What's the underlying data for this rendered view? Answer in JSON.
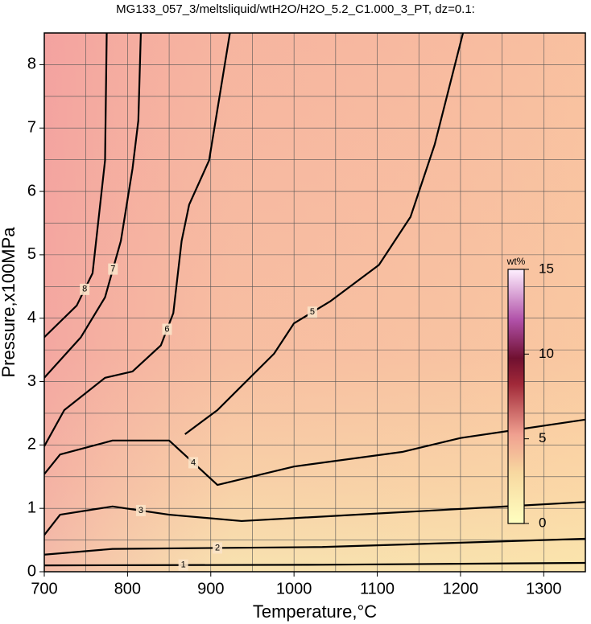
{
  "chart_data": {
    "type": "contour",
    "title": "MG133_057_3/meltsliquid/wtH2O/H2O_5.2_C1.000_3_PT, dz=0.1:",
    "x_label": "Temperature,°C",
    "y_label": "Pressure,x100MPa",
    "xlim": [
      700,
      1350
    ],
    "ylim": [
      0,
      8.5
    ],
    "xticks": [
      700,
      800,
      900,
      1000,
      1100,
      1200,
      1300
    ],
    "yticks": [
      0,
      1,
      2,
      3,
      4,
      5,
      6,
      7,
      8
    ],
    "xgrid": [
      750,
      850,
      950,
      1050,
      1150,
      1250
    ],
    "ygrid": [
      0.5,
      1.5,
      2.5,
      3.5,
      4.5,
      5.5,
      6.5,
      7.5
    ],
    "grid": true,
    "series": [
      {
        "name": "1",
        "color": "#000000",
        "x": [
          700,
          1034,
          1350
        ],
        "y": [
          0.1,
          0.11,
          0.14
        ]
      },
      {
        "name": "2",
        "color": "#000000",
        "x": [
          700,
          782,
          1034,
          1350
        ],
        "y": [
          0.27,
          0.36,
          0.39,
          0.52
        ]
      },
      {
        "name": "3",
        "color": "#000000",
        "x": [
          700,
          719,
          782,
          850,
          937,
          1130,
          1350
        ],
        "y": [
          0.58,
          0.9,
          1.03,
          0.9,
          0.8,
          0.94,
          1.1
        ]
      },
      {
        "name": "4",
        "color": "#000000",
        "x": [
          700,
          719,
          782,
          850,
          908,
          1000,
          1130,
          1200,
          1350
        ],
        "y": [
          1.54,
          1.85,
          2.07,
          2.07,
          1.37,
          1.66,
          1.89,
          2.11,
          2.4
        ]
      },
      {
        "name": "5",
        "color": "#000000",
        "x": [
          869,
          908,
          937,
          976,
          1000,
          1044,
          1102,
          1140,
          1169,
          1203
        ],
        "y": [
          2.17,
          2.55,
          2.93,
          3.44,
          3.92,
          4.27,
          4.84,
          5.6,
          6.74,
          8.5
        ]
      },
      {
        "name": "6",
        "color": "#000000",
        "x": [
          700,
          724,
          773,
          806,
          840,
          855,
          865,
          874,
          898,
          923
        ],
        "y": [
          1.98,
          2.55,
          3.06,
          3.16,
          3.57,
          4.08,
          5.22,
          5.79,
          6.49,
          8.5
        ]
      },
      {
        "name": "7",
        "color": "#000000",
        "x": [
          700,
          744,
          773,
          792,
          806,
          813,
          816
        ],
        "y": [
          3.06,
          3.7,
          4.33,
          5.22,
          6.36,
          7.12,
          8.5
        ]
      },
      {
        "name": "8",
        "color": "#000000",
        "x": [
          700,
          739,
          758,
          773,
          775
        ],
        "y": [
          3.7,
          4.2,
          4.71,
          6.49,
          8.5
        ]
      }
    ],
    "colorbar": {
      "label": "wt%",
      "lim": [
        0,
        15
      ],
      "ticks": [
        0,
        5,
        10,
        15
      ]
    }
  }
}
